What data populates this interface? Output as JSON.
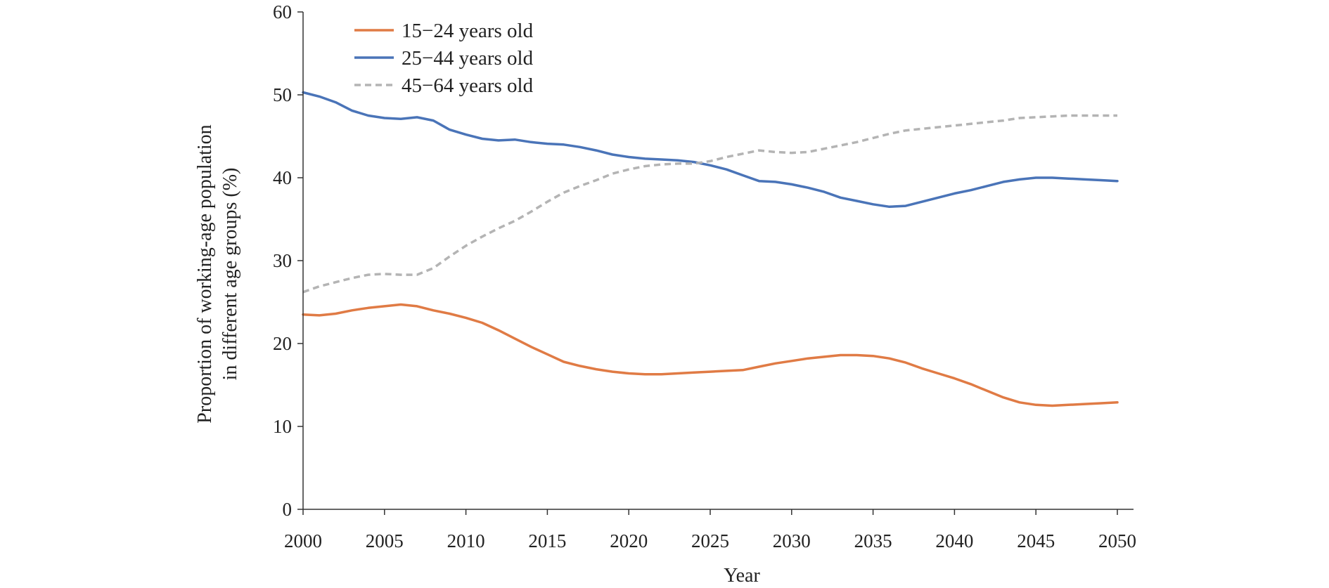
{
  "chart_data": {
    "type": "line",
    "xlabel": "Year",
    "ylabel_lines": [
      "Proportion of working-age population",
      "in different age groups (%)"
    ],
    "xlim": [
      2000,
      2051
    ],
    "ylim": [
      0,
      60
    ],
    "xticks": [
      2000,
      2005,
      2010,
      2015,
      2020,
      2025,
      2030,
      2035,
      2040,
      2045,
      2050
    ],
    "yticks": [
      0,
      10,
      20,
      30,
      40,
      50,
      60
    ],
    "grid": false,
    "legend_position": "top-left",
    "x": [
      2000,
      2001,
      2002,
      2003,
      2004,
      2005,
      2006,
      2007,
      2008,
      2009,
      2010,
      2011,
      2012,
      2013,
      2014,
      2015,
      2016,
      2017,
      2018,
      2019,
      2020,
      2021,
      2022,
      2023,
      2024,
      2025,
      2026,
      2027,
      2028,
      2029,
      2030,
      2031,
      2032,
      2033,
      2034,
      2035,
      2036,
      2037,
      2038,
      2039,
      2040,
      2041,
      2042,
      2043,
      2044,
      2045,
      2046,
      2047,
      2048,
      2049,
      2050
    ],
    "series": [
      {
        "name": "15−24 years old",
        "color": "#e07b45",
        "style": "solid",
        "values": [
          23.5,
          23.4,
          23.6,
          24.0,
          24.3,
          24.5,
          24.7,
          24.5,
          24.0,
          23.6,
          23.1,
          22.5,
          21.6,
          20.6,
          19.6,
          18.7,
          17.8,
          17.3,
          16.9,
          16.6,
          16.4,
          16.3,
          16.3,
          16.4,
          16.5,
          16.6,
          16.7,
          16.8,
          17.2,
          17.6,
          17.9,
          18.2,
          18.4,
          18.6,
          18.6,
          18.5,
          18.2,
          17.7,
          17.0,
          16.4,
          15.8,
          15.1,
          14.3,
          13.5,
          12.9,
          12.6,
          12.5,
          12.6,
          12.7,
          12.8,
          12.9
        ]
      },
      {
        "name": "25−44 years old",
        "color": "#4a74b8",
        "style": "solid",
        "values": [
          50.3,
          49.8,
          49.1,
          48.1,
          47.5,
          47.2,
          47.1,
          47.3,
          46.9,
          45.8,
          45.2,
          44.7,
          44.5,
          44.6,
          44.3,
          44.1,
          44.0,
          43.7,
          43.3,
          42.8,
          42.5,
          42.3,
          42.2,
          42.1,
          41.9,
          41.5,
          41.0,
          40.3,
          39.6,
          39.5,
          39.2,
          38.8,
          38.3,
          37.6,
          37.2,
          36.8,
          36.5,
          36.6,
          37.1,
          37.6,
          38.1,
          38.5,
          39.0,
          39.5,
          39.8,
          40.0,
          40.0,
          39.9,
          39.8,
          39.7,
          39.6
        ]
      },
      {
        "name": "45−64 years old",
        "color": "#b4b4b4",
        "style": "dashed",
        "values": [
          26.2,
          26.9,
          27.4,
          27.9,
          28.3,
          28.4,
          28.3,
          28.3,
          29.1,
          30.5,
          31.8,
          32.9,
          33.9,
          34.8,
          35.9,
          37.1,
          38.2,
          39.0,
          39.7,
          40.5,
          41.0,
          41.4,
          41.6,
          41.7,
          41.7,
          42.0,
          42.5,
          42.9,
          43.3,
          43.1,
          43.0,
          43.1,
          43.5,
          43.9,
          44.3,
          44.8,
          45.3,
          45.7,
          45.9,
          46.1,
          46.3,
          46.5,
          46.7,
          46.9,
          47.2,
          47.3,
          47.4,
          47.5,
          47.5,
          47.5,
          47.5
        ]
      }
    ]
  }
}
